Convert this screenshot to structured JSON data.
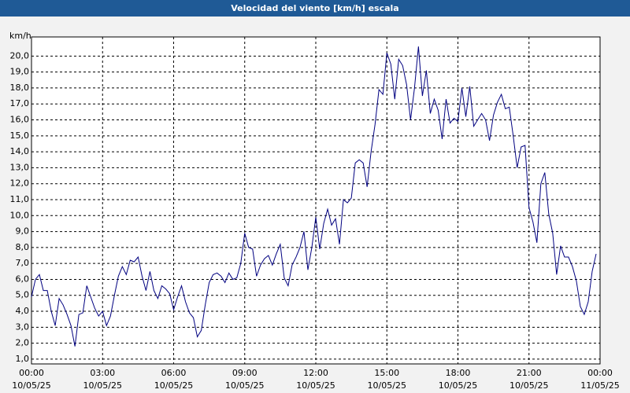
{
  "chart_data": {
    "type": "line",
    "title": "Velocidad del viento [km/h] escala",
    "y_label": "km/h",
    "color": "#000080",
    "grid": true,
    "xlim": [
      0,
      1440
    ],
    "xticks": [
      {
        "value": 0,
        "label": "00:00",
        "date": "10/05/25"
      },
      {
        "value": 180,
        "label": "03:00",
        "date": "10/05/25"
      },
      {
        "value": 360,
        "label": "06:00",
        "date": "10/05/25"
      },
      {
        "value": 540,
        "label": "09:00",
        "date": "10/05/25"
      },
      {
        "value": 720,
        "label": "12:00",
        "date": "10/05/25"
      },
      {
        "value": 900,
        "label": "15:00",
        "date": "10/05/25"
      },
      {
        "value": 1080,
        "label": "18:00",
        "date": "10/05/25"
      },
      {
        "value": 1260,
        "label": "21:00",
        "date": "10/05/25"
      },
      {
        "value": 1440,
        "label": "00:00",
        "date": "11/05/25"
      }
    ],
    "ylim": [
      0.7,
      21.2
    ],
    "yticks": [
      {
        "value": 1,
        "label": "1,0"
      },
      {
        "value": 2,
        "label": "2,0"
      },
      {
        "value": 3,
        "label": "3,0"
      },
      {
        "value": 4,
        "label": "4,0"
      },
      {
        "value": 5,
        "label": "5,0"
      },
      {
        "value": 6,
        "label": "6,0"
      },
      {
        "value": 7,
        "label": "7,0"
      },
      {
        "value": 8,
        "label": "8,0"
      },
      {
        "value": 9,
        "label": "9,0"
      },
      {
        "value": 10,
        "label": "10,0"
      },
      {
        "value": 11,
        "label": "11,0"
      },
      {
        "value": 12,
        "label": "12,0"
      },
      {
        "value": 13,
        "label": "13,0"
      },
      {
        "value": 14,
        "label": "14,0"
      },
      {
        "value": 15,
        "label": "15,0"
      },
      {
        "value": 16,
        "label": "16,0"
      },
      {
        "value": 17,
        "label": "17,0"
      },
      {
        "value": 18,
        "label": "18,0"
      },
      {
        "value": 19,
        "label": "19,0"
      },
      {
        "value": 20,
        "label": "20,0"
      }
    ],
    "x": [
      0,
      10,
      20,
      30,
      40,
      50,
      60,
      70,
      80,
      90,
      100,
      110,
      120,
      130,
      140,
      150,
      160,
      170,
      180,
      190,
      200,
      210,
      220,
      230,
      240,
      250,
      260,
      270,
      280,
      290,
      300,
      310,
      320,
      330,
      340,
      350,
      360,
      370,
      380,
      390,
      400,
      410,
      420,
      430,
      440,
      450,
      460,
      470,
      480,
      490,
      500,
      510,
      520,
      530,
      540,
      550,
      560,
      570,
      580,
      590,
      600,
      610,
      620,
      630,
      640,
      650,
      660,
      670,
      680,
      690,
      700,
      710,
      720,
      730,
      740,
      750,
      760,
      770,
      780,
      790,
      800,
      810,
      820,
      830,
      840,
      850,
      860,
      870,
      880,
      890,
      900,
      910,
      920,
      930,
      940,
      950,
      960,
      970,
      980,
      990,
      1000,
      1010,
      1020,
      1030,
      1040,
      1050,
      1060,
      1070,
      1080,
      1090,
      1100,
      1110,
      1120,
      1130,
      1140,
      1150,
      1160,
      1170,
      1180,
      1190,
      1200,
      1210,
      1220,
      1230,
      1240,
      1250,
      1260,
      1270,
      1280,
      1290,
      1300,
      1310,
      1320,
      1330,
      1340,
      1350,
      1360,
      1370,
      1380,
      1390,
      1400,
      1410,
      1420,
      1430
    ],
    "values": [
      4.9,
      6.0,
      6.3,
      5.3,
      5.3,
      4.0,
      3.1,
      4.8,
      4.4,
      3.8,
      3.1,
      1.8,
      3.8,
      3.9,
      5.6,
      4.9,
      4.2,
      3.7,
      4.0,
      3.1,
      3.7,
      5.0,
      6.2,
      6.8,
      6.3,
      7.2,
      7.1,
      7.4,
      6.2,
      5.3,
      6.5,
      5.3,
      4.8,
      5.6,
      5.4,
      5.1,
      4.1,
      4.9,
      5.6,
      4.6,
      3.9,
      3.6,
      2.4,
      2.8,
      4.4,
      5.8,
      6.3,
      6.4,
      6.2,
      5.8,
      6.4,
      6.0,
      6.1,
      7.0,
      8.9,
      8.0,
      7.9,
      6.2,
      6.9,
      7.3,
      7.5,
      6.9,
      7.6,
      8.2,
      6.1,
      5.6,
      6.9,
      7.4,
      8.0,
      9.0,
      6.6,
      8.0,
      9.9,
      7.9,
      9.5,
      10.4,
      9.4,
      9.8,
      8.2,
      11.0,
      10.8,
      11.1,
      13.3,
      13.5,
      13.3,
      11.8,
      14.0,
      15.7,
      17.9,
      17.6,
      20.2,
      19.5,
      17.3,
      19.8,
      19.4,
      18.2,
      16.0,
      18.0,
      20.6,
      17.5,
      19.1,
      16.4,
      17.3,
      16.6,
      14.8,
      17.3,
      15.8,
      16.1,
      15.9,
      18.0,
      16.2,
      18.1,
      15.6,
      16.0,
      16.4,
      16.0,
      14.7,
      16.3,
      17.1,
      17.6,
      16.7,
      16.8,
      15.0,
      13.0,
      14.3,
      14.4,
      10.5,
      9.6,
      8.3,
      12.0,
      12.7,
      10.1,
      8.9,
      6.3,
      8.1,
      7.4,
      7.4,
      6.8,
      5.9,
      4.3,
      3.8,
      4.6,
      6.5,
      7.6
    ]
  }
}
